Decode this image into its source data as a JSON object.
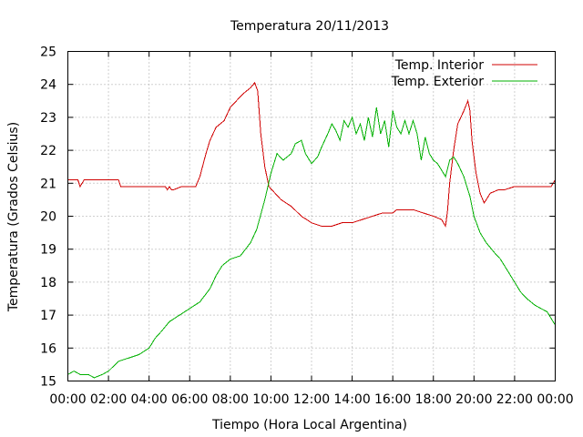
{
  "chart_data": {
    "type": "line",
    "title": "Temperatura 20/11/2013",
    "xlabel": "Tiempo (Hora Local Argentina)",
    "ylabel": "Temperatura (Grados Celsius)",
    "xlim": [
      0,
      24
    ],
    "ylim": [
      15,
      25
    ],
    "xtick_labels": [
      "00:00",
      "02:00",
      "04:00",
      "06:00",
      "08:00",
      "10:00",
      "12:00",
      "14:00",
      "16:00",
      "18:00",
      "20:00",
      "22:00",
      "00:00"
    ],
    "ytick_labels": [
      "15",
      "16",
      "17",
      "18",
      "19",
      "20",
      "21",
      "22",
      "23",
      "24",
      "25"
    ],
    "grid": true,
    "legend_position": "top-right",
    "series": [
      {
        "name": "Temp. Interior",
        "color": "#d00000",
        "x": [
          0,
          0.5,
          0.6,
          0.8,
          1.5,
          2.5,
          2.6,
          4.0,
          4.8,
          4.9,
          5.0,
          5.1,
          5.2,
          5.6,
          6.3,
          6.5,
          6.8,
          7.0,
          7.3,
          7.7,
          8.0,
          8.3,
          8.6,
          9.0,
          9.2,
          9.35,
          9.5,
          9.7,
          9.9,
          10.2,
          10.5,
          11.0,
          11.5,
          12.0,
          12.5,
          13.0,
          13.5,
          14.0,
          14.5,
          15.0,
          15.5,
          16.0,
          16.2,
          16.5,
          17.0,
          17.5,
          18.0,
          18.4,
          18.6,
          18.7,
          18.8,
          19.0,
          19.2,
          19.5,
          19.7,
          19.8,
          19.9,
          20.1,
          20.3,
          20.5,
          20.8,
          21.2,
          21.5,
          22.0,
          22.5,
          23.0,
          23.8,
          24.0
        ],
        "y": [
          21.1,
          21.1,
          20.9,
          21.1,
          21.1,
          21.1,
          20.9,
          20.9,
          20.9,
          20.8,
          20.9,
          20.8,
          20.8,
          20.9,
          20.9,
          21.2,
          21.9,
          22.3,
          22.7,
          22.9,
          23.3,
          23.5,
          23.7,
          23.9,
          24.05,
          23.8,
          22.5,
          21.5,
          20.9,
          20.7,
          20.5,
          20.3,
          20.0,
          19.8,
          19.7,
          19.7,
          19.8,
          19.8,
          19.9,
          20.0,
          20.1,
          20.1,
          20.2,
          20.2,
          20.2,
          20.1,
          20.0,
          19.9,
          19.7,
          20.2,
          21.0,
          22.0,
          22.8,
          23.2,
          23.5,
          23.2,
          22.3,
          21.3,
          20.7,
          20.4,
          20.7,
          20.8,
          20.8,
          20.9,
          20.9,
          20.9,
          20.9,
          21.1
        ]
      },
      {
        "name": "Temp. Exterior",
        "color": "#00b000",
        "x": [
          0,
          0.3,
          0.6,
          1.0,
          1.3,
          1.7,
          2.0,
          2.5,
          3.0,
          3.5,
          4.0,
          4.3,
          4.6,
          5.0,
          5.5,
          6.0,
          6.5,
          7.0,
          7.3,
          7.6,
          8.0,
          8.5,
          9.0,
          9.3,
          9.7,
          10.0,
          10.3,
          10.6,
          10.8,
          11.0,
          11.2,
          11.5,
          11.7,
          12.0,
          12.3,
          12.5,
          12.8,
          13.0,
          13.2,
          13.4,
          13.6,
          13.8,
          14.0,
          14.2,
          14.4,
          14.6,
          14.8,
          15.0,
          15.2,
          15.4,
          15.6,
          15.8,
          16.0,
          16.2,
          16.4,
          16.6,
          16.8,
          17.0,
          17.2,
          17.4,
          17.6,
          17.8,
          18.0,
          18.2,
          18.4,
          18.6,
          18.8,
          19.0,
          19.2,
          19.5,
          19.8,
          20.0,
          20.3,
          20.6,
          21.0,
          21.3,
          21.6,
          22.0,
          22.3,
          22.6,
          23.0,
          23.3,
          23.6,
          23.8,
          24.0
        ],
        "y": [
          15.2,
          15.3,
          15.2,
          15.2,
          15.1,
          15.2,
          15.3,
          15.6,
          15.7,
          15.8,
          16.0,
          16.3,
          16.5,
          16.8,
          17.0,
          17.2,
          17.4,
          17.8,
          18.2,
          18.5,
          18.7,
          18.8,
          19.2,
          19.6,
          20.5,
          21.3,
          21.9,
          21.7,
          21.8,
          21.9,
          22.2,
          22.3,
          21.9,
          21.6,
          21.8,
          22.1,
          22.5,
          22.8,
          22.6,
          22.3,
          22.9,
          22.7,
          23.0,
          22.5,
          22.8,
          22.3,
          23.0,
          22.4,
          23.3,
          22.5,
          22.9,
          22.1,
          23.2,
          22.7,
          22.5,
          22.9,
          22.5,
          22.9,
          22.5,
          21.7,
          22.4,
          21.9,
          21.7,
          21.6,
          21.4,
          21.2,
          21.7,
          21.8,
          21.6,
          21.2,
          20.6,
          20.0,
          19.5,
          19.2,
          18.9,
          18.7,
          18.4,
          18.0,
          17.7,
          17.5,
          17.3,
          17.2,
          17.1,
          16.9,
          16.7
        ]
      }
    ]
  }
}
